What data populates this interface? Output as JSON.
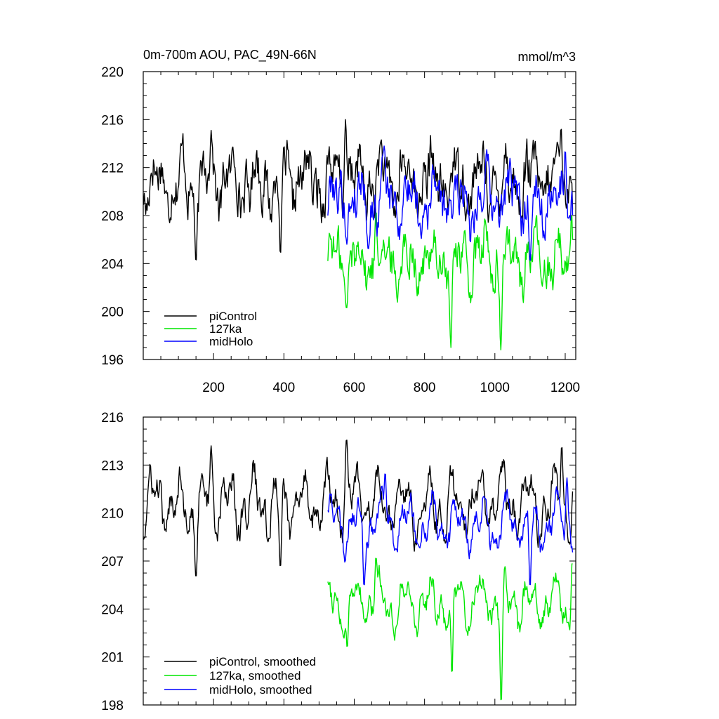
{
  "figure": {
    "colors": {
      "piControl": "#000000",
      "127ka": "#00e600",
      "midHolo": "#0000ff"
    }
  },
  "chart_data": [
    {
      "type": "line",
      "title": "0m-700m AOU, PAC_49N-66N",
      "units": "mmol/m^3",
      "xlabel": "",
      "ylabel": "",
      "xlim": [
        0,
        1230
      ],
      "ylim": [
        196,
        220
      ],
      "xticks": [
        200,
        400,
        600,
        800,
        1000,
        1200
      ],
      "yticks": [
        196,
        200,
        204,
        208,
        212,
        216,
        220
      ],
      "legend_position": "bottom-left",
      "series": [
        {
          "name": "piControl",
          "color_key": "piControl",
          "x_start": 1,
          "x_end": 1222,
          "mean": 210.9,
          "amplitude": 2.2,
          "jitter": 1.6,
          "dips": [
            [
              150,
              204.0
            ],
            [
              390,
              204.6
            ]
          ],
          "peaks": [
            [
              193,
              215.1
            ],
            [
              575,
              216.0
            ],
            [
              1188,
              215.4
            ]
          ]
        },
        {
          "name": "127ka",
          "color_key": "127ka",
          "x_start": 525,
          "x_end": 1222,
          "mean": 204.3,
          "amplitude": 2.1,
          "jitter": 1.5,
          "dips": [
            [
              875,
              197.0
            ],
            [
              1017,
              196.8
            ],
            [
              578,
              200.2
            ]
          ],
          "peaks": [
            [
              662,
              208.5
            ],
            [
              1218,
              208.2
            ]
          ]
        },
        {
          "name": "midHolo",
          "color_key": "midHolo",
          "x_start": 525,
          "x_end": 1222,
          "mean": 209.4,
          "amplitude": 2.0,
          "jitter": 1.5,
          "dips": [
            [
              1100,
              204.0
            ],
            [
              640,
              205.2
            ]
          ],
          "peaks": [
            [
              685,
              213.8
            ],
            [
              1200,
              213.5
            ]
          ]
        }
      ],
      "legend": [
        "piControl",
        "127ka",
        "midHolo"
      ]
    },
    {
      "type": "line",
      "title": "",
      "xlabel": "",
      "ylabel": "",
      "xlim": [
        0,
        1230
      ],
      "ylim": [
        198,
        216
      ],
      "xticks": [
        200,
        400,
        600,
        800,
        1000,
        1200
      ],
      "yticks": [
        198,
        201,
        204,
        207,
        210,
        213,
        216
      ],
      "legend_position": "bottom-left",
      "series": [
        {
          "name": "piControl, smoothed",
          "color_key": "piControl",
          "x_start": 1,
          "x_end": 1222,
          "mean": 210.6,
          "amplitude": 1.9,
          "jitter": 0.7,
          "dips": [
            [
              150,
              205.9
            ],
            [
              390,
              206.5
            ]
          ],
          "peaks": [
            [
              193,
              214.2
            ],
            [
              578,
              214.7
            ],
            [
              1190,
              214.3
            ]
          ]
        },
        {
          "name": "127ka, smoothed",
          "color_key": "127ka",
          "x_start": 525,
          "x_end": 1222,
          "mean": 204.4,
          "amplitude": 1.6,
          "jitter": 0.6,
          "dips": [
            [
              580,
              201.5
            ],
            [
              878,
              199.8
            ],
            [
              1018,
              198.0
            ]
          ],
          "peaks": [
            [
              662,
              207.3
            ],
            [
              1220,
              207.0
            ]
          ]
        },
        {
          "name": "midHolo, smoothed",
          "color_key": "midHolo",
          "x_start": 525,
          "x_end": 1222,
          "mean": 209.3,
          "amplitude": 1.6,
          "jitter": 0.6,
          "dips": [
            [
              1100,
              205.3
            ],
            [
              628,
              205.4
            ]
          ],
          "peaks": [
            [
              688,
              212.6
            ],
            [
              1205,
              212.2
            ]
          ]
        }
      ],
      "legend": [
        "piControl, smoothed",
        "127ka, smoothed",
        "midHolo, smoothed"
      ]
    }
  ]
}
